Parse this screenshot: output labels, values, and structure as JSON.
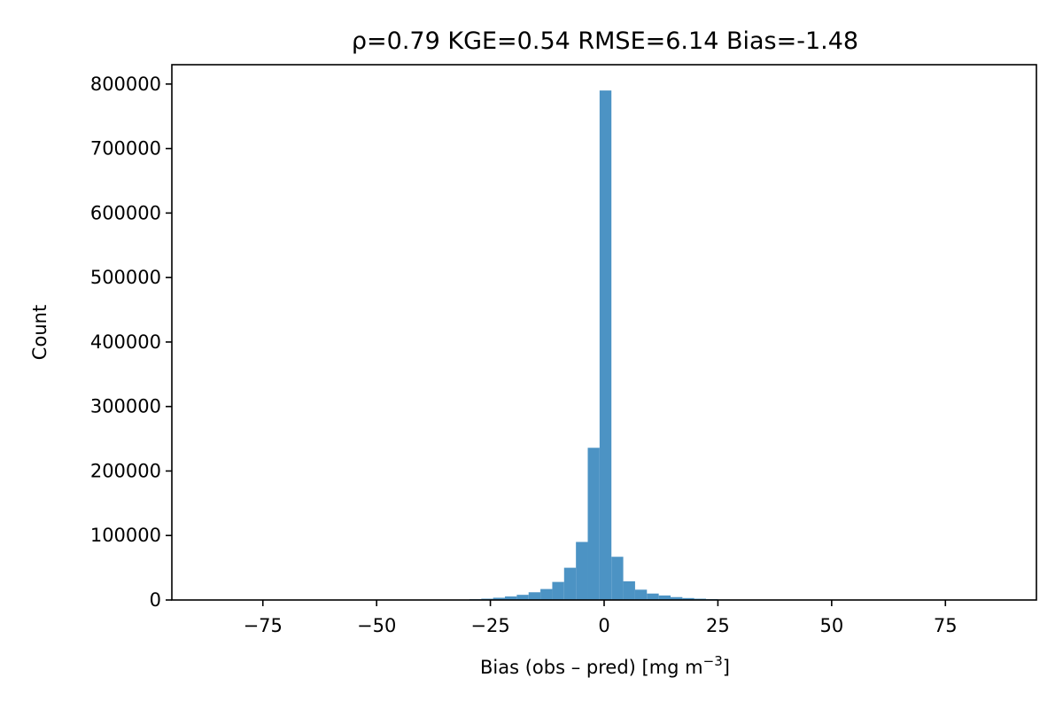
{
  "chart_data": {
    "type": "bar",
    "title": "ρ=0.79   KGE=0.54   RMSE=6.14   Bias=-1.48",
    "xlabel_main": "Bias (obs – pred)  [mg m",
    "xlabel_sup": "−3",
    "xlabel_end": "]",
    "ylabel": "Count",
    "xlim": [
      -95,
      95
    ],
    "ylim": [
      0,
      830000
    ],
    "xticks": [
      -75,
      -50,
      -25,
      0,
      25,
      50,
      75
    ],
    "xtick_labels": [
      "−75",
      "−50",
      "−25",
      "0",
      "25",
      "50",
      "75"
    ],
    "yticks": [
      0,
      100000,
      200000,
      300000,
      400000,
      500000,
      600000,
      700000,
      800000
    ],
    "ytick_labels": [
      "0",
      "100000",
      "200000",
      "300000",
      "400000",
      "500000",
      "600000",
      "700000",
      "800000"
    ],
    "bar_color": "#4c93c4",
    "grid": false,
    "bins": [
      {
        "x0": -40.0,
        "x1": -37.4,
        "count": 0
      },
      {
        "x0": -37.4,
        "x1": -34.8,
        "count": 0
      },
      {
        "x0": -34.8,
        "x1": -32.2,
        "count": 300
      },
      {
        "x0": -32.2,
        "x1": -29.6,
        "count": 600
      },
      {
        "x0": -29.6,
        "x1": -27.0,
        "count": 1200
      },
      {
        "x0": -27.0,
        "x1": -24.4,
        "count": 2000
      },
      {
        "x0": -24.4,
        "x1": -21.8,
        "count": 3500
      },
      {
        "x0": -21.8,
        "x1": -19.2,
        "count": 5500
      },
      {
        "x0": -19.2,
        "x1": -16.6,
        "count": 8000
      },
      {
        "x0": -16.6,
        "x1": -14.0,
        "count": 12000
      },
      {
        "x0": -14.0,
        "x1": -11.4,
        "count": 17000
      },
      {
        "x0": -11.4,
        "x1": -8.8,
        "count": 28000
      },
      {
        "x0": -8.8,
        "x1": -6.2,
        "count": 50000
      },
      {
        "x0": -6.2,
        "x1": -3.6,
        "count": 90000
      },
      {
        "x0": -3.6,
        "x1": -1.0,
        "count": 236000
      },
      {
        "x0": -1.0,
        "x1": 1.6,
        "count": 790000
      },
      {
        "x0": 1.6,
        "x1": 4.2,
        "count": 67000
      },
      {
        "x0": 4.2,
        "x1": 6.8,
        "count": 29000
      },
      {
        "x0": 6.8,
        "x1": 9.4,
        "count": 16000
      },
      {
        "x0": 9.4,
        "x1": 12.0,
        "count": 10000
      },
      {
        "x0": 12.0,
        "x1": 14.6,
        "count": 7000
      },
      {
        "x0": 14.6,
        "x1": 17.2,
        "count": 4500
      },
      {
        "x0": 17.2,
        "x1": 19.8,
        "count": 3000
      },
      {
        "x0": 19.8,
        "x1": 22.4,
        "count": 2000
      },
      {
        "x0": 22.4,
        "x1": 25.0,
        "count": 1300
      },
      {
        "x0": 25.0,
        "x1": 27.6,
        "count": 800
      },
      {
        "x0": 27.6,
        "x1": 30.2,
        "count": 400
      },
      {
        "x0": 30.2,
        "x1": 32.8,
        "count": 200
      }
    ]
  }
}
